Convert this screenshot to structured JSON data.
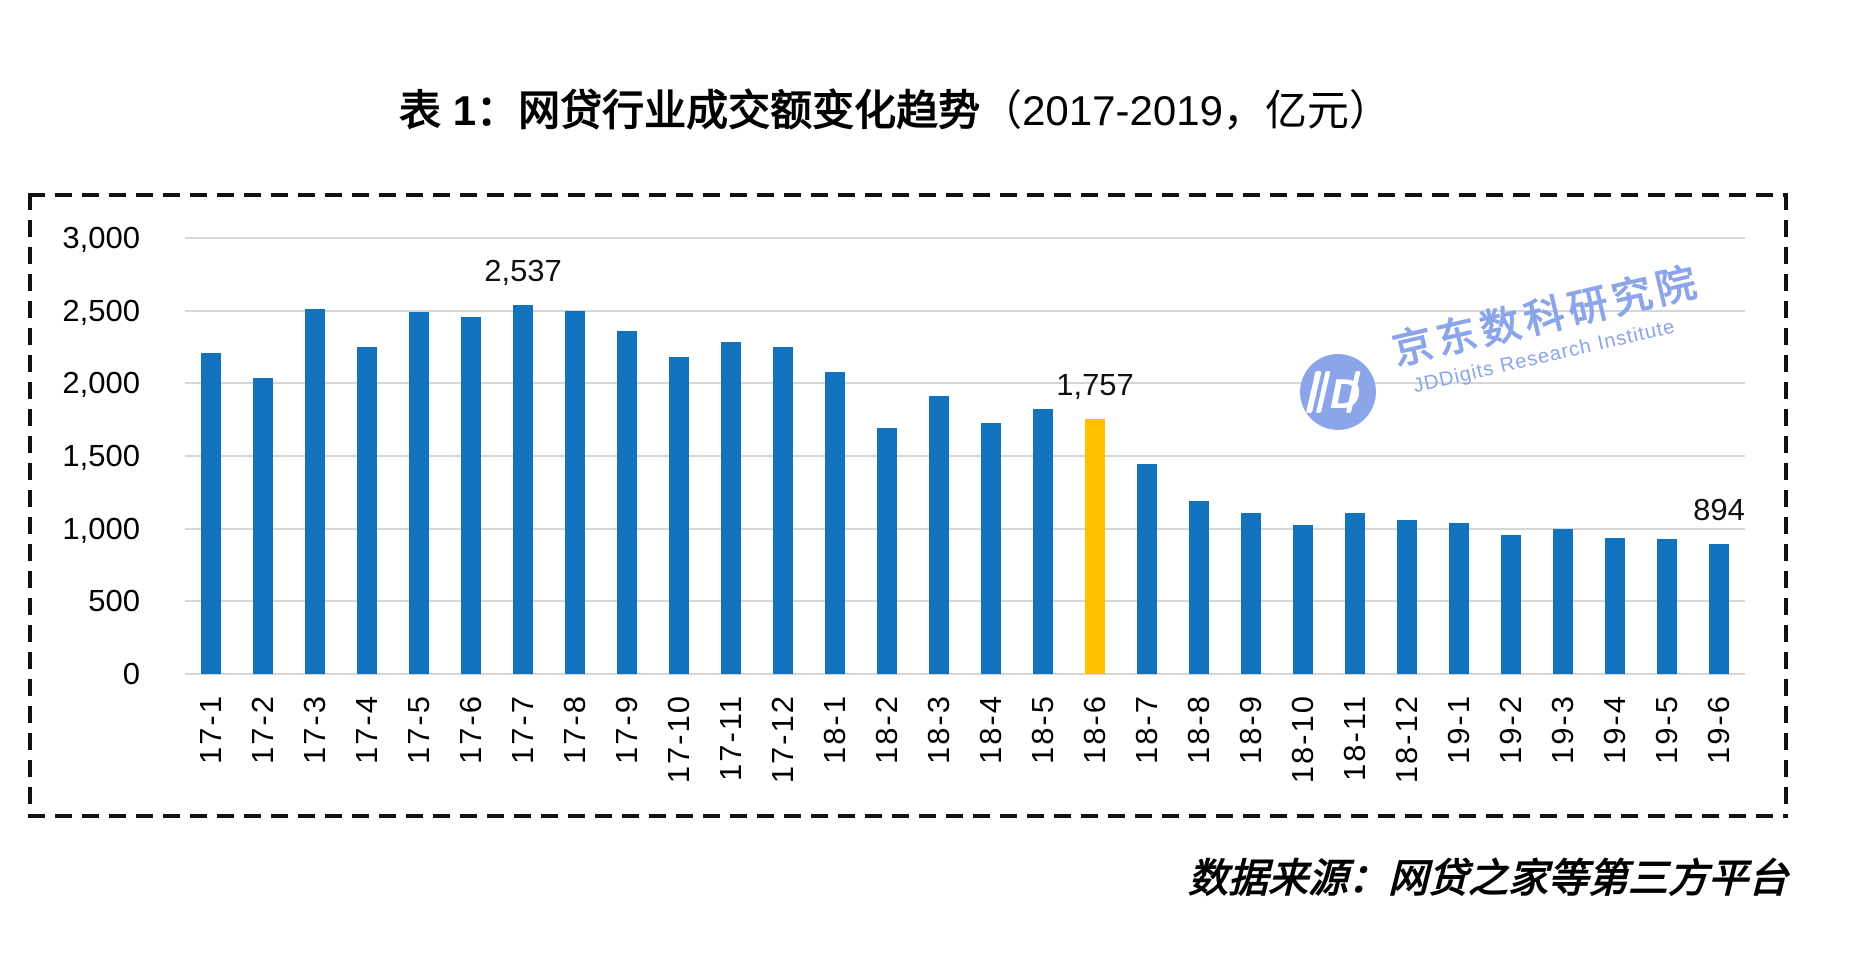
{
  "title": {
    "main": "表 1：网贷行业成交额变化趋势",
    "paren": "（2017-2019，亿元）"
  },
  "watermark": {
    "monogram": "JD",
    "chinese": "京东数科研究院",
    "english": "JDDigits Research Institute",
    "color": "#8CA4EA"
  },
  "source_note": "数据来源：网贷之家等第三方平台",
  "chart_data": {
    "type": "bar",
    "title": "表 1：网贷行业成交额变化趋势（2017-2019，亿元）",
    "unit": "亿元",
    "categories": [
      "17-1",
      "17-2",
      "17-3",
      "17-4",
      "17-5",
      "17-6",
      "17-7",
      "17-8",
      "17-9",
      "17-10",
      "17-11",
      "17-12",
      "18-1",
      "18-2",
      "18-3",
      "18-4",
      "18-5",
      "18-6",
      "18-7",
      "18-8",
      "18-9",
      "18-10",
      "18-11",
      "18-12",
      "19-1",
      "19-2",
      "19-3",
      "19-4",
      "19-5",
      "19-6"
    ],
    "values": [
      2210,
      2040,
      2510,
      2250,
      2490,
      2455,
      2537,
      2500,
      2360,
      2180,
      2285,
      2250,
      2080,
      1690,
      1915,
      1730,
      1825,
      1757,
      1447,
      1193,
      1108,
      1023,
      1110,
      1060,
      1040,
      958,
      1000,
      935,
      930,
      894
    ],
    "highlight_category": "18-6",
    "highlight_index": 17,
    "bar_color": "#1272BD",
    "highlight_color": "#FFC000",
    "gridline_color": "#D6D6D6",
    "ylim": [
      0,
      3000
    ],
    "yticks": [
      3000,
      2500,
      2000,
      1500,
      1000,
      500,
      0
    ],
    "ytick_labels": [
      "3,000",
      "2,500",
      "2,000",
      "1,500",
      "1,000",
      "500",
      "0"
    ],
    "xlabel": "",
    "ylabel": "",
    "grid": "horizontal",
    "legend": "none",
    "data_labels": [
      {
        "index": 6,
        "text": "2,537"
      },
      {
        "index": 17,
        "text": "1,757"
      },
      {
        "index": 29,
        "text": "894"
      }
    ]
  }
}
